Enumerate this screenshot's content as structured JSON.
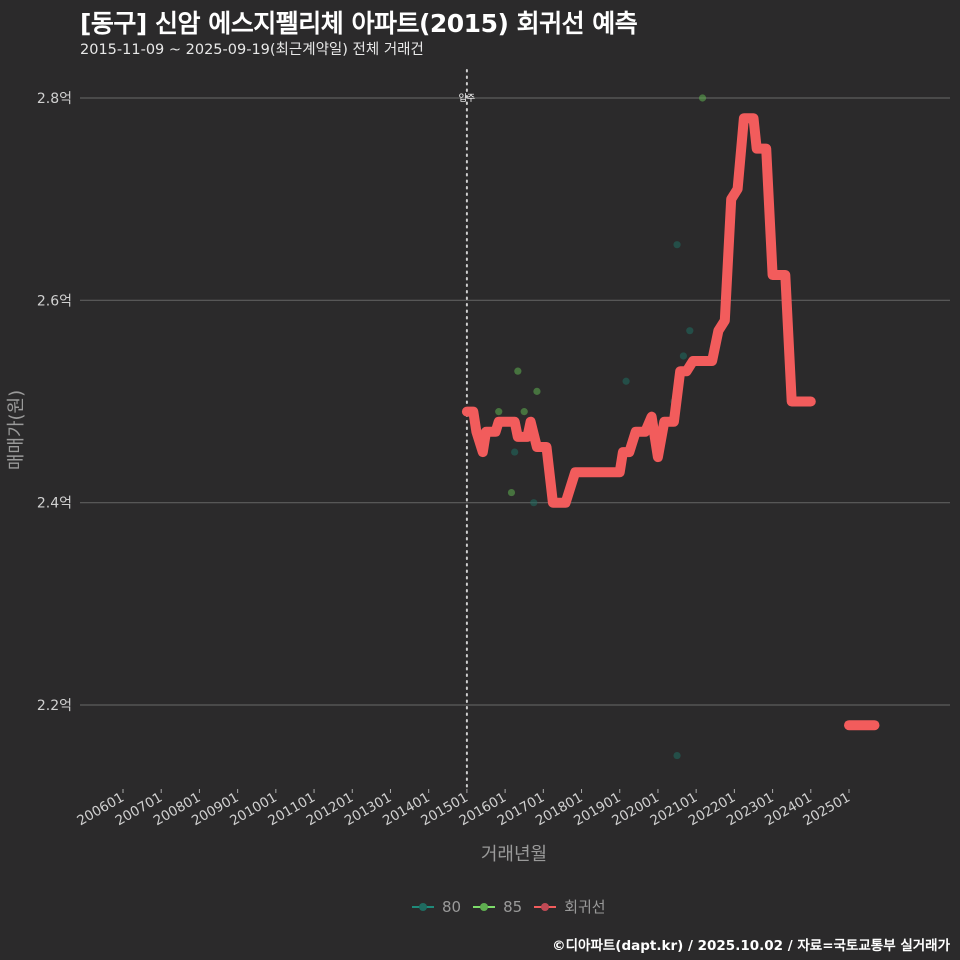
{
  "header": {
    "title": "[동구] 신암 에스지펠리체 아파트(2015) 회귀선 예측",
    "subtitle": "2015-11-09 ~ 2025-09-19(최근계약일) 전체 거래건"
  },
  "footer": {
    "caption": "©디아파트(dapt.kr) / 2025.10.02 / 자료=국토교통부 실거래가"
  },
  "legend": {
    "items": [
      {
        "label": "80",
        "color": "#1f8a7a"
      },
      {
        "label": "85",
        "color": "#7ddc6a"
      },
      {
        "label": "회귀선",
        "color": "#f25c5c"
      }
    ]
  },
  "annotation": {
    "label": "입주",
    "x": "201501"
  },
  "chart_data": {
    "type": "line",
    "title": "[동구] 신암 에스지펠리체 아파트(2015) 회귀선 예측",
    "subtitle": "2015-11-09 ~ 2025-09-19(최근계약일) 전체 거래건",
    "xlabel": "거래년월",
    "ylabel": "매매가(원)",
    "x_ticks": [
      "200601",
      "200701",
      "200801",
      "200901",
      "201001",
      "201101",
      "201201",
      "201301",
      "201401",
      "201501",
      "201601",
      "201701",
      "201801",
      "201901",
      "202001",
      "202101",
      "202201",
      "202301",
      "202401",
      "202501"
    ],
    "y_ticks": [
      "2.2억",
      "2.4억",
      "2.6억",
      "2.8억"
    ],
    "ylim": [
      2.13,
      2.83
    ],
    "y_unit": "억",
    "grid": true,
    "legend_position": "bottom",
    "vline": {
      "x": "2015-01",
      "label": "입주",
      "style": "dotted"
    },
    "series": [
      {
        "name": "회귀선",
        "type": "line",
        "color": "#f25c5c",
        "points": [
          [
            "2015-01",
            2.49
          ],
          [
            "2015-03",
            2.49
          ],
          [
            "2015-04",
            2.47
          ],
          [
            "2015-06",
            2.45
          ],
          [
            "2015-07",
            2.47
          ],
          [
            "2015-10",
            2.47
          ],
          [
            "2015-11",
            2.48
          ],
          [
            "2016-04",
            2.48
          ],
          [
            "2016-05",
            2.465
          ],
          [
            "2016-08",
            2.465
          ],
          [
            "2016-09",
            2.48
          ],
          [
            "2016-11",
            2.455
          ],
          [
            "2017-02",
            2.455
          ],
          [
            "2017-04",
            2.4
          ],
          [
            "2017-08",
            2.4
          ],
          [
            "2017-11",
            2.43
          ],
          [
            "2018-01",
            2.43
          ],
          [
            "2019-01",
            2.43
          ],
          [
            "2019-02",
            2.45
          ],
          [
            "2019-04",
            2.45
          ],
          [
            "2019-06",
            2.47
          ],
          [
            "2019-09",
            2.47
          ],
          [
            "2019-11",
            2.485
          ],
          [
            "2020-01",
            2.445
          ],
          [
            "2020-03",
            2.48
          ],
          [
            "2020-06",
            2.48
          ],
          [
            "2020-08",
            2.53
          ],
          [
            "2020-10",
            2.53
          ],
          [
            "2020-12",
            2.54
          ],
          [
            "2021-06",
            2.54
          ],
          [
            "2021-08",
            2.57
          ],
          [
            "2021-10",
            2.58
          ],
          [
            "2021-12",
            2.7
          ],
          [
            "2022-02",
            2.71
          ],
          [
            "2022-04",
            2.78
          ],
          [
            "2022-07",
            2.78
          ],
          [
            "2022-08",
            2.75
          ],
          [
            "2022-11",
            2.75
          ],
          [
            "2023-01",
            2.625
          ],
          [
            "2023-05",
            2.625
          ],
          [
            "2023-07",
            2.5
          ],
          [
            "2024-01",
            2.5
          ]
        ],
        "segment2": [
          [
            "2025-01",
            2.18
          ],
          [
            "2025-09",
            2.18
          ]
        ]
      },
      {
        "name": "80",
        "type": "scatter",
        "color": "#1f8a7a",
        "points": [
          [
            "2016-04",
            2.45
          ],
          [
            "2016-10",
            2.4
          ],
          [
            "2019-03",
            2.52
          ],
          [
            "2020-06",
            2.5
          ],
          [
            "2020-07",
            2.655
          ],
          [
            "2020-09",
            2.545
          ],
          [
            "2020-11",
            2.57
          ],
          [
            "2020-07",
            2.15
          ]
        ]
      },
      {
        "name": "85",
        "type": "scatter",
        "color": "#7ddc6a",
        "points": [
          [
            "2015-11",
            2.49
          ],
          [
            "2016-03",
            2.41
          ],
          [
            "2016-05",
            2.53
          ],
          [
            "2016-07",
            2.49
          ],
          [
            "2016-11",
            2.51
          ],
          [
            "2021-03",
            2.8
          ]
        ]
      }
    ]
  }
}
